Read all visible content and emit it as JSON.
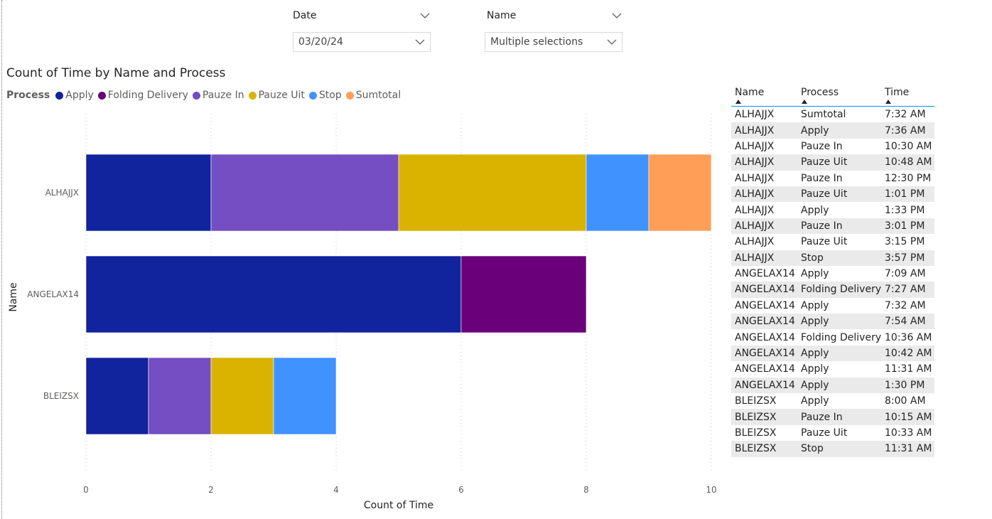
{
  "slicers": [
    {
      "title": "Date",
      "value": "03/20/24"
    },
    {
      "title": "Name",
      "value": "Multiple selections"
    }
  ],
  "chart_data": {
    "type": "bar",
    "orientation": "horizontal",
    "stacked": true,
    "title": "Count of Time by Name and Process",
    "xlabel": "Count of Time",
    "ylabel": "Name",
    "xlim": [
      0,
      10
    ],
    "xticks": [
      0,
      2,
      4,
      6,
      8,
      10
    ],
    "grid": true,
    "legend_title": "Process",
    "legend_position": "top-left",
    "categories": [
      "ALHAJJX",
      "ANGELAX14",
      "BLEIZSX"
    ],
    "series": [
      {
        "name": "Apply",
        "color": "#12239e",
        "values": [
          2,
          6,
          1
        ]
      },
      {
        "name": "Folding Delivery",
        "color": "#6b007b",
        "values": [
          0,
          2,
          0
        ]
      },
      {
        "name": "Pauze In",
        "color": "#744ec2",
        "values": [
          3,
          0,
          1
        ]
      },
      {
        "name": "Pauze Uit",
        "color": "#d9b300",
        "values": [
          3,
          0,
          1
        ]
      },
      {
        "name": "Stop",
        "color": "#4092ff",
        "values": [
          1,
          0,
          1
        ]
      },
      {
        "name": "Sumtotal",
        "color": "#ff9f57",
        "values": [
          1,
          0,
          0
        ]
      }
    ]
  },
  "table": {
    "headers": [
      "Name",
      "Process",
      "Time"
    ],
    "rows": [
      [
        "ALHAJJX",
        "Sumtotal",
        "7:32 AM"
      ],
      [
        "ALHAJJX",
        "Apply",
        "7:36 AM"
      ],
      [
        "ALHAJJX",
        "Pauze In",
        "10:30 AM"
      ],
      [
        "ALHAJJX",
        "Pauze Uit",
        "10:48 AM"
      ],
      [
        "ALHAJJX",
        "Pauze In",
        "12:30 PM"
      ],
      [
        "ALHAJJX",
        "Pauze Uit",
        "1:01 PM"
      ],
      [
        "ALHAJJX",
        "Apply",
        "1:33 PM"
      ],
      [
        "ALHAJJX",
        "Pauze In",
        "3:01 PM"
      ],
      [
        "ALHAJJX",
        "Pauze Uit",
        "3:15 PM"
      ],
      [
        "ALHAJJX",
        "Stop",
        "3:57 PM"
      ],
      [
        "ANGELAX14",
        "Apply",
        "7:09 AM"
      ],
      [
        "ANGELAX14",
        "Folding Delivery",
        "7:27 AM"
      ],
      [
        "ANGELAX14",
        "Apply",
        "7:32 AM"
      ],
      [
        "ANGELAX14",
        "Apply",
        "7:54 AM"
      ],
      [
        "ANGELAX14",
        "Folding Delivery",
        "10:36 AM"
      ],
      [
        "ANGELAX14",
        "Apply",
        "10:42 AM"
      ],
      [
        "ANGELAX14",
        "Apply",
        "11:31 AM"
      ],
      [
        "ANGELAX14",
        "Apply",
        "1:30 PM"
      ],
      [
        "BLEIZSX",
        "Apply",
        "8:00 AM"
      ],
      [
        "BLEIZSX",
        "Pauze In",
        "10:15 AM"
      ],
      [
        "BLEIZSX",
        "Pauze Uit",
        "10:33 AM"
      ],
      [
        "BLEIZSX",
        "Stop",
        "11:31 AM"
      ]
    ]
  }
}
